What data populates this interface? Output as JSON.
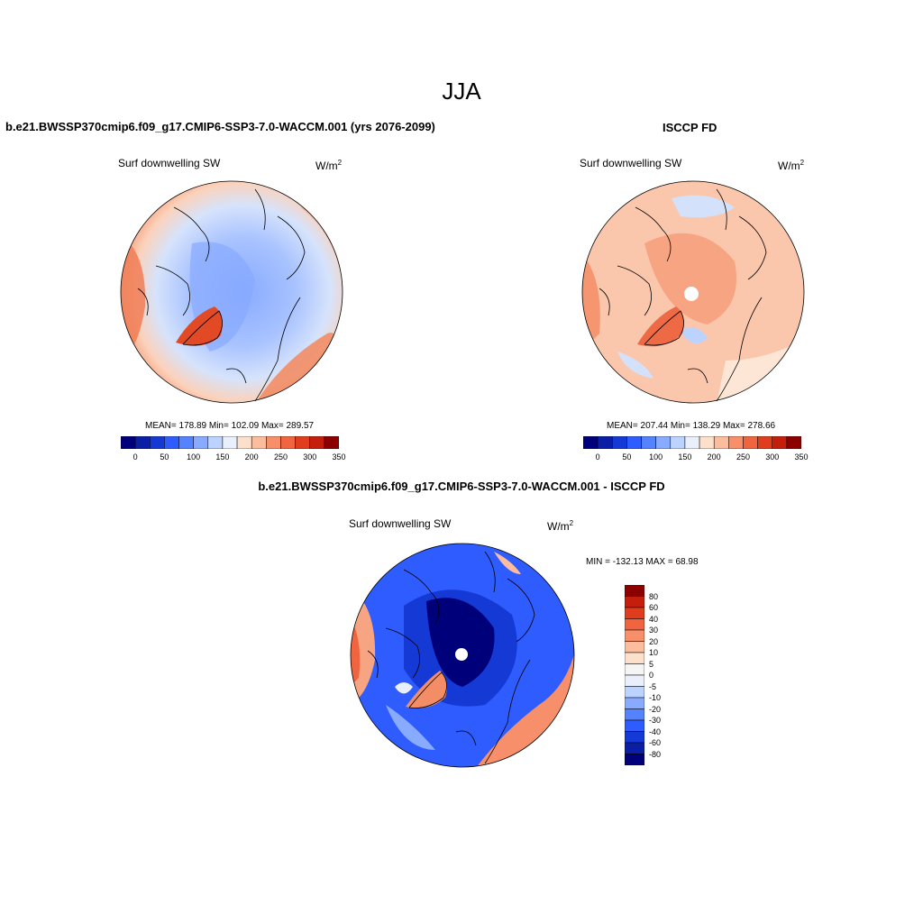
{
  "figure": {
    "season_title": "JJA"
  },
  "panel_model": {
    "case_title": "b.e21.BWSSP370cmip6.f09_g17.CMIP6-SSP3-7.0-WACCM.001 (yrs 2076-2099)",
    "variable": "Surf downwelling SW",
    "units": "W/m",
    "units_exp": "2",
    "stats": "MEAN= 178.89  Min= 102.09  Max= 289.57"
  },
  "panel_obs": {
    "case_title": "ISCCP FD",
    "variable": "Surf downwelling SW",
    "units": "W/m",
    "units_exp": "2",
    "stats": "MEAN= 207.44  Min= 138.29  Max= 278.66"
  },
  "panel_diff": {
    "case_title": "b.e21.BWSSP370cmip6.f09_g17.CMIP6-SSP3-7.0-WACCM.001 - ISCCP FD",
    "variable": "Surf downwelling SW",
    "units": "W/m",
    "units_exp": "2",
    "minmax": "MIN = -132.13 MAX =  68.98"
  },
  "colorbar_abs": {
    "tick_labels": [
      "0",
      "50",
      "100",
      "150",
      "200",
      "250",
      "300",
      "350"
    ],
    "colors": [
      "#00007a",
      "#0a1fa6",
      "#1539d4",
      "#2e5cff",
      "#5582ff",
      "#88aaff",
      "#bdd3ff",
      "#e9f0fb",
      "#fde0cc",
      "#fbbd9e",
      "#f7906a",
      "#f06540",
      "#e03d1e",
      "#c41e0c",
      "#8c0000"
    ]
  },
  "colorbar_diff": {
    "tick_labels": [
      "80",
      "60",
      "40",
      "30",
      "20",
      "10",
      "5",
      "0",
      "-5",
      "-10",
      "-20",
      "-30",
      "-40",
      "-60",
      "-80"
    ],
    "colors": [
      "#8c0000",
      "#c41e0c",
      "#e03d1e",
      "#f06540",
      "#f7906a",
      "#fbbd9e",
      "#fde0cc",
      "#f5f5f5",
      "#e9f0fb",
      "#bdd3ff",
      "#88aaff",
      "#5582ff",
      "#2e5cff",
      "#1539d4",
      "#0a1fa6",
      "#00007a"
    ]
  }
}
